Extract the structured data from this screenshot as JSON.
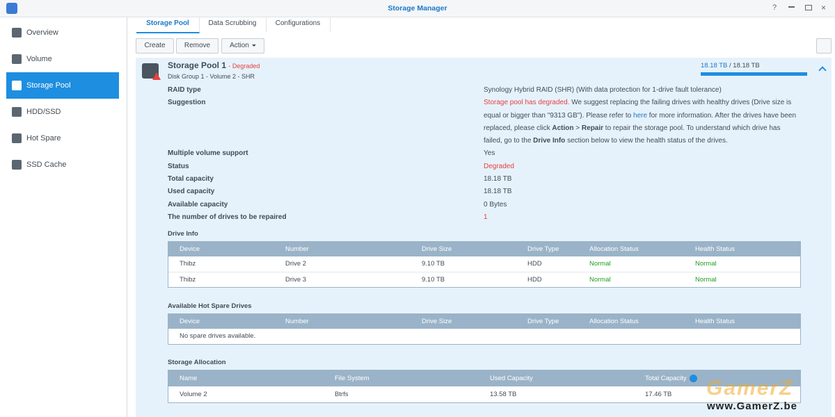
{
  "window": {
    "title": "Storage Manager"
  },
  "sidebar": {
    "items": [
      "Overview",
      "Volume",
      "Storage Pool",
      "HDD/SSD",
      "Hot Spare",
      "SSD Cache"
    ]
  },
  "tabs": [
    "Storage Pool",
    "Data Scrubbing",
    "Configurations"
  ],
  "toolbar": {
    "buttons": [
      "Create",
      "Remove",
      "Action"
    ]
  },
  "pool": {
    "name": "Storage Pool 1",
    "status": "- Degraded",
    "subtitle": "Disk Group 1 - Volume 2 - SHR",
    "usage_used": "18.18 TB",
    "usage_total": "/ 18.18 TB",
    "raid_label": "RAID type",
    "raid_value": "Synology Hybrid RAID (SHR) (With data protection for 1-drive fault tolerance)",
    "suggestion_label": "Suggestion",
    "suggestion": [
      "Storage pool has degraded.",
      " We suggest replacing the failing drives with healthy drives (Drive size is equal or bigger than \"9313 GB\"). Please refer to ",
      "here",
      " for more information. After the drives have been replaced, please click ",
      "Action",
      " > ",
      "Repair",
      " to repair the storage pool. To understand which drive has failed, go to the ",
      "Drive Info",
      " section below to view the health status of the drives."
    ],
    "properties": [
      {
        "label": "Multiple volume support",
        "value": "Yes"
      },
      {
        "label": "Status",
        "value": "Degraded",
        "color": "#e64040"
      },
      {
        "label": "Total capacity",
        "value": "18.18 TB"
      },
      {
        "label": "Used capacity",
        "value": "18.18 TB"
      },
      {
        "label": "Available capacity",
        "value": "0 Bytes"
      },
      {
        "label": "The number of drives to be repaired",
        "value": "1",
        "color": "#e64040"
      }
    ]
  },
  "tables": [
    {
      "title": "Drive Info",
      "columns": [
        "Device",
        "Number",
        "Drive Size",
        "Drive Type",
        "Allocation Status",
        "Health Status"
      ],
      "rows": [
        [
          "Thibz",
          "Drive 2",
          "9.10 TB",
          "HDD",
          "Normal",
          "Normal"
        ],
        [
          "Thibz",
          "Drive 3",
          "9.10 TB",
          "HDD",
          "Normal",
          "Normal"
        ]
      ]
    },
    {
      "title": "Available Hot Spare Drives",
      "columns": [
        "Device",
        "Number",
        "Drive Size",
        "Drive Type",
        "Allocation Status",
        "Health Status"
      ],
      "empty": "No spare drives available."
    },
    {
      "title": "Storage Allocation",
      "columns": [
        "Name",
        "File System",
        "Used Capacity",
        "Total Capacity"
      ],
      "rows": [
        [
          "Volume 2",
          "Btrfs",
          "13.58 TB",
          "17.46 TB"
        ]
      ]
    }
  ],
  "watermark": {
    "logo": "GamerZ",
    "url": "www.GamerZ.be"
  }
}
